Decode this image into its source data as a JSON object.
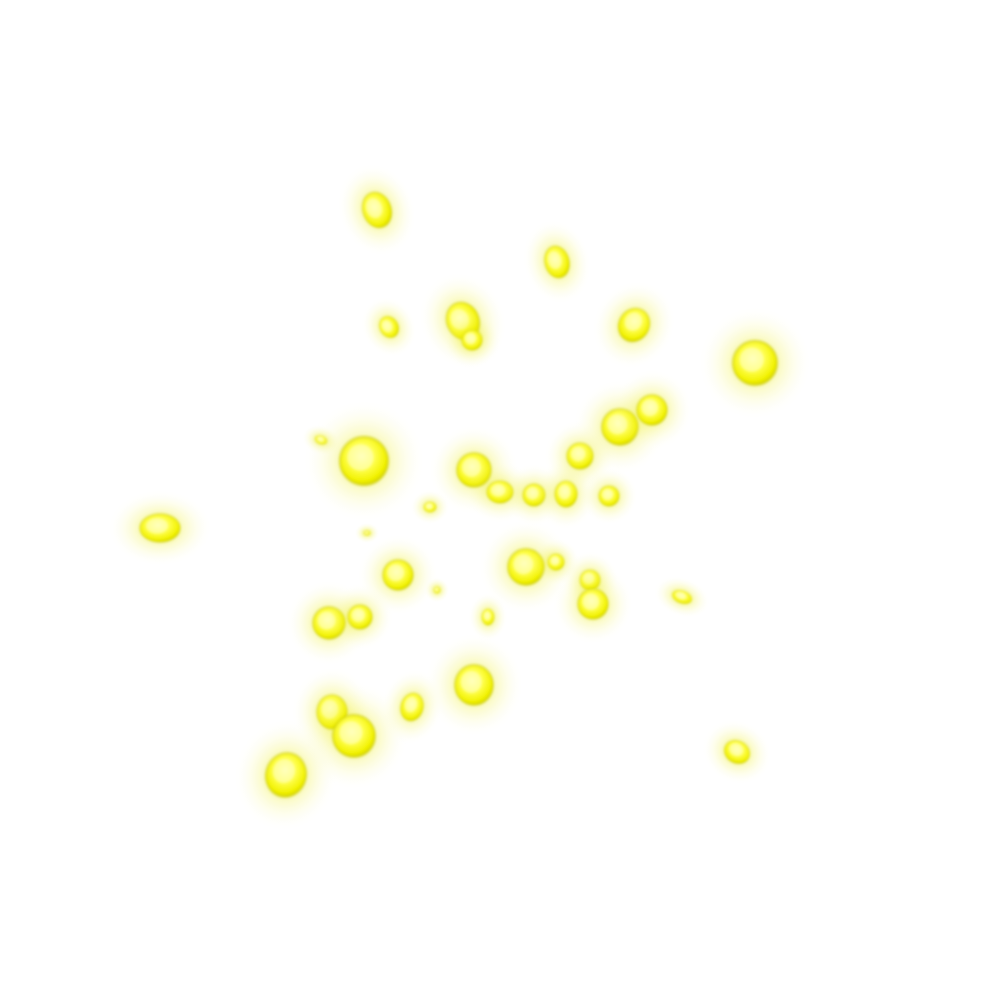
{
  "image": {
    "subject": "glowing-particles",
    "background_color": "#ffffff",
    "particle_core_color": "#ffff70",
    "particle_mid_color": "#f0f000",
    "particle_glow_color": "#e6e600",
    "rim_color": "#c8c800"
  }
}
